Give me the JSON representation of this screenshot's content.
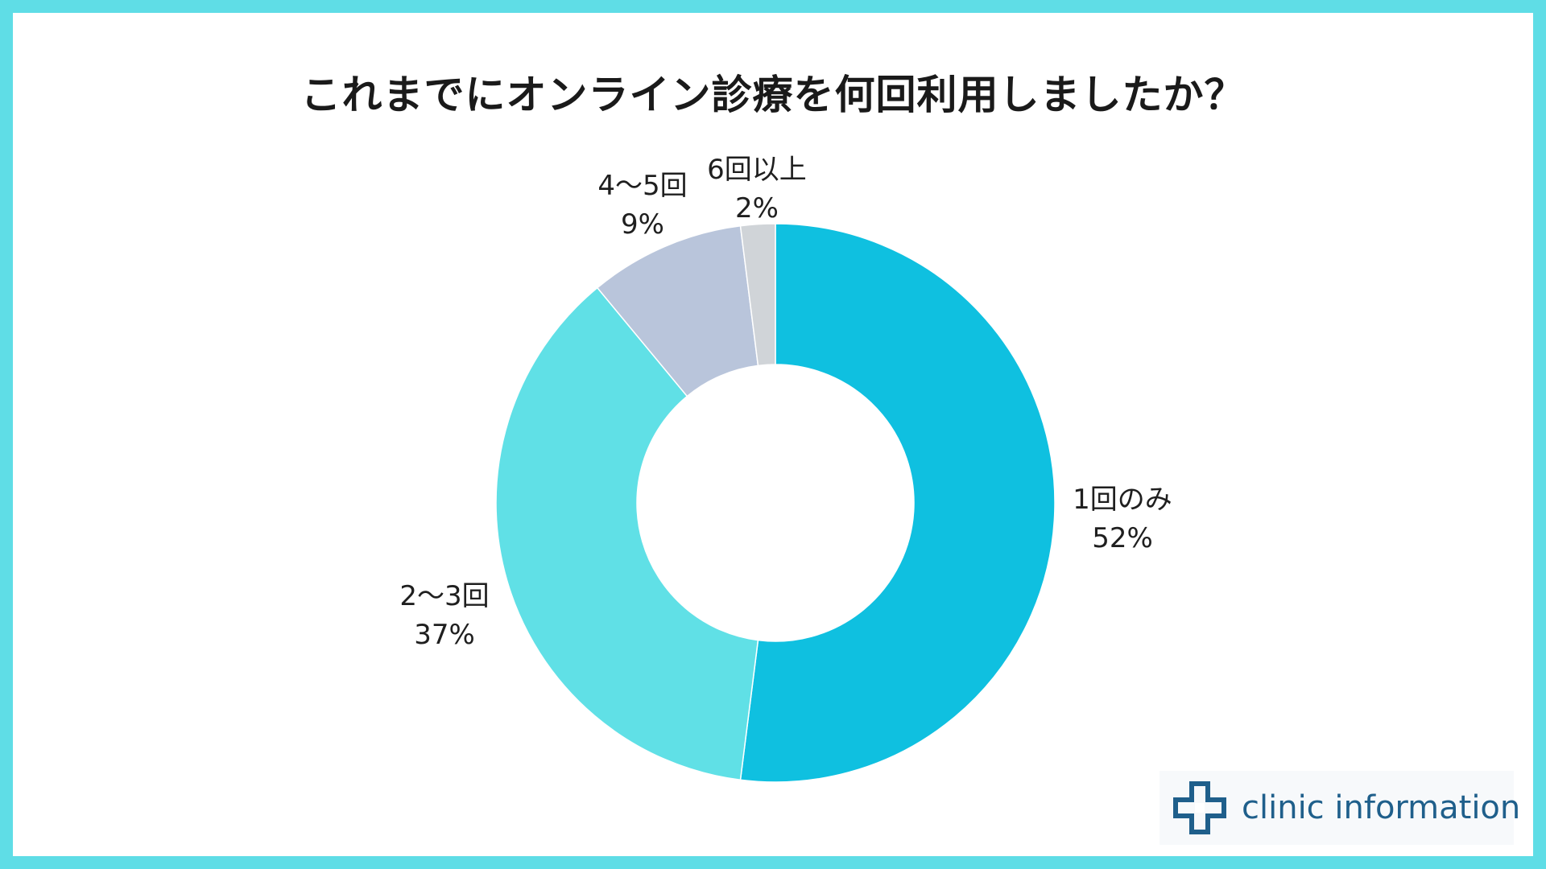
{
  "chart_data": {
    "type": "pie",
    "donut": true,
    "title": "これまでにオンライン診療を何回利用しましたか？",
    "slices": [
      {
        "label": "1回のみ",
        "value": 52,
        "value_label": "52%",
        "color": "#0fc0e0"
      },
      {
        "label": "2〜3回",
        "value": 37,
        "value_label": "37%",
        "color": "#60e0e6"
      },
      {
        "label": "4〜5回",
        "value": 9,
        "value_label": "9%",
        "color": "#b9c5db"
      },
      {
        "label": "6回以上",
        "value": 2,
        "value_label": "2%",
        "color": "#d0d4d8"
      }
    ],
    "start_angle": "12 o'clock",
    "direction": "clockwise"
  },
  "branding": {
    "name": "clinic information",
    "logo_icon": "medical-cross-icon",
    "color": "#1f5f8b"
  },
  "frame": {
    "border_color": "#5fdde6"
  }
}
